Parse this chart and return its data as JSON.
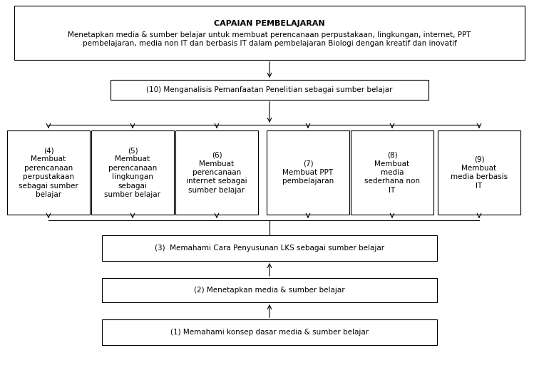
{
  "title_bold": "CAPAIAN PEMBELAJARAN",
  "title_sub": "Menetapkan media & sumber belajar untuk membuat perencanaan perpustakaan, lingkungan, internet, PPT\npembelajaran, media non IT dan berbasis IT dalam pembelajaran Biologi dengan kreatif dan inovatif",
  "box10": "(10) Menganalisis Pemanfaatan Penelitian sebagai sumber belajar",
  "box4": "(4)\nMembuat\nperencanaan\nperpustakaan\nsebagai sumber\nbelajar",
  "box5": "(5)\nMembuat\nperencanaan\nlingkungan\nsebagai\nsumber belajar",
  "box6": "(6)\nMembuat\nperencanaan\ninternet sebagai\nsumber belajar",
  "box7": "(7)\nMembuat PPT\npembelajaran",
  "box8": "(8)\nMembuat\nmedia\nsederhana non\nIT",
  "box9": "(9)\nMembuat\nmedia berbasis\nIT",
  "box3": "(3)  Memahami Cara Penyusunan LKS sebagai sumber belajar",
  "box2": "(2) Menetapkan media & sumber belajar",
  "box1": "(1) Memahami konsep dasar media & sumber belajar",
  "bg_color": "#ffffff",
  "box_edge_color": "#000000",
  "text_color": "#000000",
  "font_size": 7.5,
  "small_font_size": 7.5,
  "title_font_size": 8.0,
  "subtitle_font_size": 7.5
}
